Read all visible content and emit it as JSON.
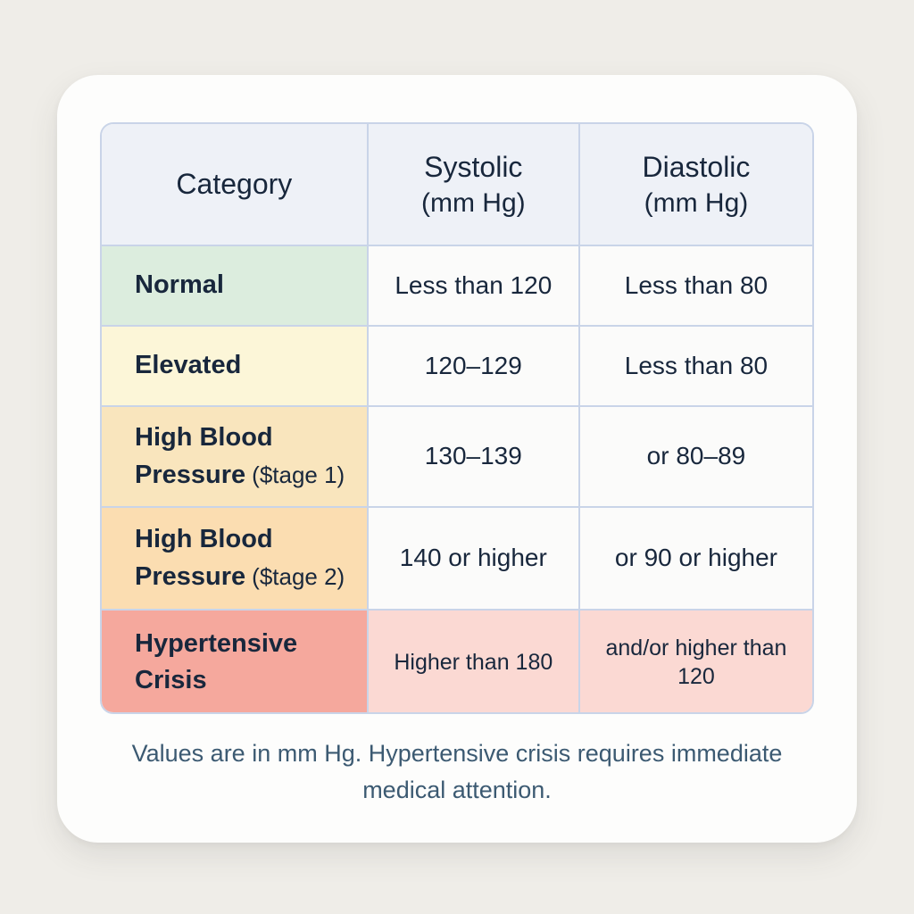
{
  "table": {
    "columns": [
      {
        "label": "Category",
        "unit": ""
      },
      {
        "label": "Systolic",
        "unit": "(mm Hg)"
      },
      {
        "label": "Diastolic",
        "unit": "(mm Hg)"
      }
    ],
    "rows": [
      {
        "category": "Normal",
        "suffix": "",
        "systolic": "Less than 120",
        "diastolic": "Less than 80"
      },
      {
        "category": "Elevated",
        "suffix": "",
        "systolic": "120–129",
        "diastolic": "Less than 80"
      },
      {
        "category": "High Blood Pressure",
        "suffix": "($tage 1)",
        "systolic": "130–139",
        "diastolic": "or 80–89"
      },
      {
        "category": "High Blood Pressure",
        "suffix": "($tage 2)",
        "systolic": "140 or higher",
        "diastolic": "or 90 or higher"
      },
      {
        "category": "Hypertensive Crisis",
        "suffix": "",
        "systolic": "Higher than 180",
        "diastolic": "and/or higher than 120"
      }
    ]
  },
  "footnote": "Values are in mm Hg. Hypertensive crisis requires immediate medical attention.",
  "colors": {
    "page-bg": "#efede8",
    "card-bg": "#fdfdfc",
    "header-bg": "#eef1f7",
    "border": "#c9d4e8",
    "cell-bg": "#fbfbfa",
    "normal-bg": "#dcedde",
    "elevated-bg": "#fcf6d8",
    "stage1-bg": "#f9e5bd",
    "stage2-bg": "#fbddb1",
    "crisis-bg": "#f5a89d",
    "crisis-cell-bg": "#fbd9d3",
    "ink": "#18273c",
    "footnote-ink": "#3c5a72"
  }
}
